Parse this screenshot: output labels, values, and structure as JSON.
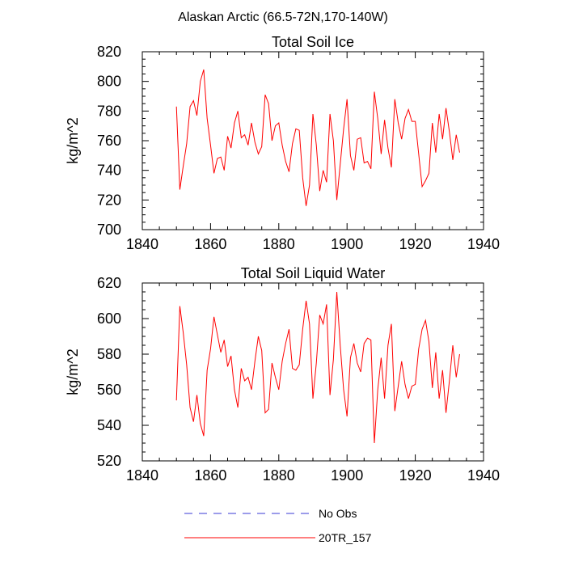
{
  "suptitle": "Alaskan Arctic (66.5-72N,170-140W)",
  "legend": [
    {
      "label": "No Obs",
      "color": "#3a3ad6",
      "dash": "dashed"
    },
    {
      "label": "20TR_157",
      "color": "#ff0000",
      "dash": "solid"
    }
  ],
  "chart_data": [
    {
      "type": "line",
      "title": "Total Soil Ice",
      "xlabel": "",
      "ylabel": "kg/m^2",
      "xlim": [
        1840,
        1940
      ],
      "ylim": [
        700,
        820
      ],
      "xticks": [
        1840,
        1860,
        1880,
        1900,
        1920,
        1940
      ],
      "yticks": [
        700,
        720,
        740,
        760,
        780,
        800,
        820
      ],
      "x_start": 1850,
      "series": [
        {
          "name": "20TR_157",
          "color": "#ff0000",
          "values": [
            783,
            727,
            743,
            758,
            783,
            787,
            777,
            800,
            808,
            775,
            757,
            738,
            748,
            749,
            740,
            763,
            755,
            772,
            780,
            762,
            764,
            757,
            772,
            759,
            751,
            756,
            791,
            785,
            760,
            770,
            772,
            757,
            746,
            739,
            758,
            768,
            767,
            735,
            716,
            730,
            778,
            757,
            726,
            740,
            732,
            778,
            760,
            720,
            744,
            768,
            788,
            750,
            740,
            761,
            762,
            745,
            746,
            741,
            793,
            775,
            751,
            774,
            755,
            742,
            788,
            772,
            761,
            775,
            781,
            773,
            773,
            751,
            729,
            733,
            738,
            772,
            752,
            778,
            761,
            782,
            766,
            747,
            764,
            752
          ]
        }
      ]
    },
    {
      "type": "line",
      "title": "Total Soil Liquid Water",
      "xlabel": "",
      "ylabel": "kg/m^2",
      "xlim": [
        1840,
        1940
      ],
      "ylim": [
        520,
        620
      ],
      "xticks": [
        1840,
        1860,
        1880,
        1900,
        1920,
        1940
      ],
      "yticks": [
        520,
        540,
        560,
        580,
        600,
        620
      ],
      "x_start": 1850,
      "series": [
        {
          "name": "20TR_157",
          "color": "#ff0000",
          "values": [
            554,
            607,
            592,
            574,
            550,
            542,
            557,
            541,
            534,
            571,
            583,
            601,
            591,
            581,
            588,
            573,
            579,
            560,
            550,
            572,
            565,
            567,
            560,
            576,
            590,
            582,
            547,
            549,
            575,
            567,
            560,
            576,
            586,
            594,
            572,
            571,
            574,
            594,
            610,
            597,
            555,
            575,
            602,
            597,
            608,
            557,
            577,
            615,
            585,
            560,
            545,
            578,
            586,
            575,
            570,
            586,
            589,
            588,
            530,
            560,
            578,
            555,
            585,
            597,
            548,
            562,
            576,
            563,
            555,
            562,
            563,
            583,
            594,
            599,
            587,
            561,
            581,
            555,
            571,
            547,
            565,
            585,
            567,
            580
          ]
        }
      ]
    }
  ]
}
